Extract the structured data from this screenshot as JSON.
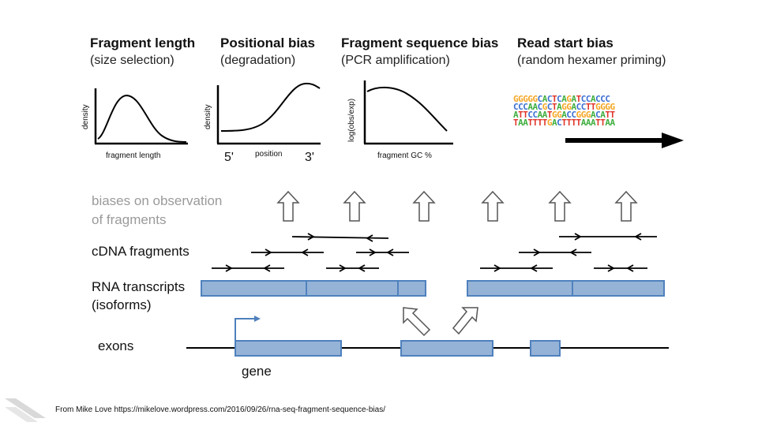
{
  "panels": [
    {
      "title": "Fragment length",
      "subtitle": "(size selection)",
      "ylabel": "density",
      "xlabel": "fragment length"
    },
    {
      "title": "Positional bias",
      "subtitle": "(degradation)",
      "ylabel": "density",
      "xlabel": "position",
      "left_tick": "5'",
      "right_tick": "3'"
    },
    {
      "title": "Fragment sequence bias",
      "subtitle": "(PCR amplification)",
      "ylabel": "log(obs/exp)",
      "xlabel": "fragment GC %"
    },
    {
      "title": "Read start bias",
      "subtitle": "(random hexamer priming)"
    }
  ],
  "sequence_logo": {
    "rows": [
      "GGGGGCACTCAGATCCACCC",
      "CCCAACGCTAGGACCTTGGGG",
      "ATTCCAATGGACCGGGACATT",
      "TAATTTTGACTTTTAAATTAA"
    ]
  },
  "rows": {
    "biases_label": "biases on observation of fragments",
    "biases_line1": "biases on observation",
    "biases_line2": "of fragments",
    "cdna_label": "cDNA fragments",
    "rna_line1": "RNA transcripts",
    "rna_line2": "(isoforms)",
    "exons_label": "exons",
    "gene_label": "gene"
  },
  "colors": {
    "exon_fill": "#95b3d7",
    "exon_stroke": "#4f81bd",
    "label_muted": "#9a9a9a",
    "logo_G": "#f5a623",
    "logo_C": "#3a6fd1",
    "logo_A": "#3fae3f",
    "logo_T": "#e0342a"
  },
  "footer": {
    "source": "From Mike Love https://mikelove.wordpress.com/2016/09/26/rna-seq-fragment-sequence-bias/"
  }
}
